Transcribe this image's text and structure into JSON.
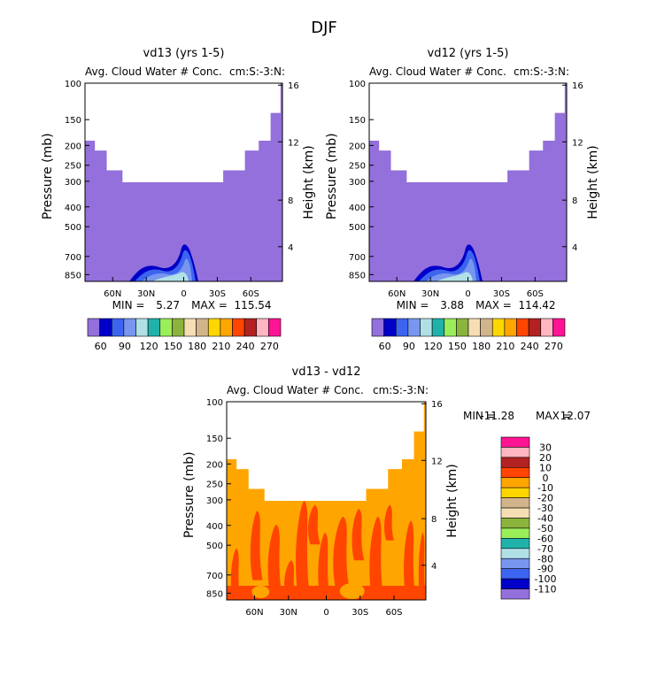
{
  "figure_title": "DJF",
  "chart_data": [
    {
      "type": "contour",
      "title": "vd13 (yrs 1-5)",
      "subtitle": "Avg. Cloud Water # Conc.",
      "units": "cm:S:-3:N:",
      "ylabel": "Pressure (mb)",
      "y2label": "Height (km)",
      "xticks": [
        "60N",
        "30N",
        "0",
        "30S",
        "60S"
      ],
      "yticks": [
        "100",
        "150",
        "200",
        "250",
        "300",
        "400",
        "500",
        "700",
        "850"
      ],
      "y2ticks": [
        "16",
        "12",
        "8",
        "4"
      ],
      "stats": {
        "min_label": "MIN =",
        "min": "5.27",
        "max_label": "MAX =",
        "max": "115.54"
      },
      "levels": [
        "60",
        "90",
        "120",
        "150",
        "180",
        "210",
        "240",
        "270"
      ],
      "colors": [
        "#9370db",
        "#0000c8",
        "#3c64f0",
        "#7896f0",
        "#b0e0e6",
        "#20b2aa",
        "#9aee5a",
        "#8bb43c",
        "#f5deb3",
        "#d2b48c",
        "#ffd700",
        "#ffa500",
        "#ff4500",
        "#b22222",
        "#ffb6c1",
        "#ff1493"
      ]
    },
    {
      "type": "contour",
      "title": "vd12 (yrs 1-5)",
      "subtitle": "Avg. Cloud Water # Conc.",
      "units": "cm:S:-3:N:",
      "ylabel": "Pressure (mb)",
      "y2label": "Height (km)",
      "xticks": [
        "60N",
        "30N",
        "0",
        "30S",
        "60S"
      ],
      "yticks": [
        "100",
        "150",
        "200",
        "250",
        "300",
        "400",
        "500",
        "700",
        "850"
      ],
      "y2ticks": [
        "16",
        "12",
        "8",
        "4"
      ],
      "stats": {
        "min_label": "MIN =",
        "min": "3.88",
        "max_label": "MAX =",
        "max": "114.42"
      },
      "levels": [
        "60",
        "90",
        "120",
        "150",
        "180",
        "210",
        "240",
        "270"
      ],
      "colors": [
        "#9370db",
        "#0000c8",
        "#3c64f0",
        "#7896f0",
        "#b0e0e6",
        "#20b2aa",
        "#9aee5a",
        "#8bb43c",
        "#f5deb3",
        "#d2b48c",
        "#ffd700",
        "#ffa500",
        "#ff4500",
        "#b22222",
        "#ffb6c1",
        "#ff1493"
      ]
    },
    {
      "type": "contour",
      "title": "vd13 - vd12",
      "subtitle": "Avg. Cloud Water # Conc.",
      "units": "cm:S:-3:N:",
      "ylabel": "Pressure (mb)",
      "y2label": "Height (km)",
      "xticks": [
        "60N",
        "30N",
        "0",
        "30S",
        "60S"
      ],
      "yticks": [
        "100",
        "150",
        "200",
        "250",
        "300",
        "400",
        "500",
        "700",
        "850"
      ],
      "y2ticks": [
        "16",
        "12",
        "8",
        "4"
      ],
      "stats": {
        "min_label": "MIN =",
        "min": "-11.28",
        "max_label": "MAX =",
        "max": "12.07"
      },
      "levels": [
        "30",
        "20",
        "10",
        "0",
        "-10",
        "-20",
        "-30",
        "-40",
        "-50",
        "-60",
        "-70",
        "-80",
        "-90",
        "-100",
        "-110"
      ],
      "colors": [
        "#ff1493",
        "#ffb6c1",
        "#b22222",
        "#ff4500",
        "#ffa500",
        "#ffd700",
        "#d2b48c",
        "#f5deb3",
        "#8bb43c",
        "#9aee5a",
        "#20b2aa",
        "#b0e0e6",
        "#7896f0",
        "#3c64f0",
        "#0000c8",
        "#9370db"
      ]
    }
  ]
}
